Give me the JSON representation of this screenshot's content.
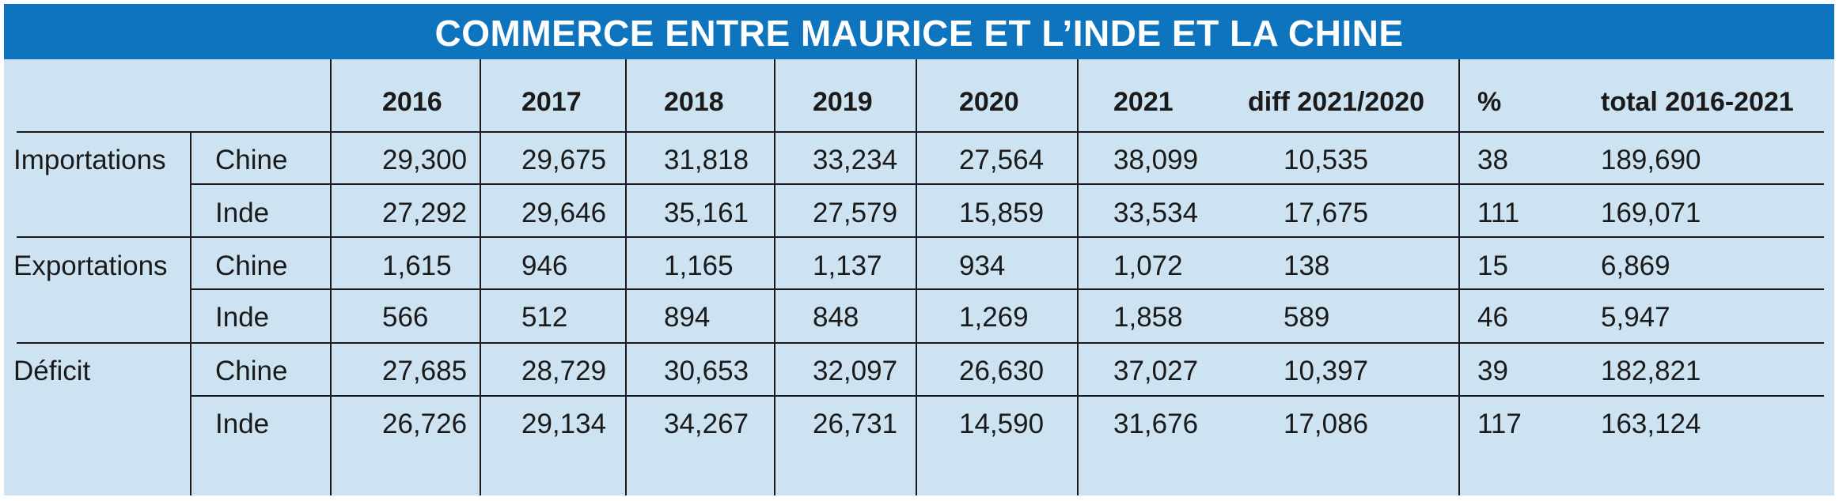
{
  "title": "COMMERCE ENTRE MAURICE ET L’INDE ET LA CHINE",
  "headers": [
    "2016",
    "2017",
    "2018",
    "2019",
    "2020",
    "2021",
    "diff 2021/2020",
    "%",
    "total 2016-2021"
  ],
  "rows": [
    {
      "group": "Importations",
      "country": "Chine",
      "values": [
        "29,300",
        "29,675",
        "31,818",
        "33,234",
        "27,564",
        "38,099",
        "10,535",
        "38",
        "189,690"
      ]
    },
    {
      "group": "",
      "country": "Inde",
      "values": [
        "27,292",
        "29,646",
        "35,161",
        "27,579",
        "15,859",
        "33,534",
        "17,675",
        "111",
        "169,071"
      ]
    },
    {
      "group": "Exportations",
      "country": "Chine",
      "values": [
        "1,615",
        "946",
        "1,165",
        "1,137",
        "934",
        "1,072",
        "138",
        "15",
        "6,869"
      ]
    },
    {
      "group": "",
      "country": "Inde",
      "values": [
        "566",
        "512",
        "894",
        "848",
        "1,269",
        "1,858",
        "589",
        "46",
        "5,947"
      ]
    },
    {
      "group": "Déficit",
      "country": "Chine",
      "values": [
        "27,685",
        "28,729",
        "30,653",
        "32,097",
        "26,630",
        "37,027",
        "10,397",
        "39",
        "182,821"
      ]
    },
    {
      "group": "",
      "country": "Inde",
      "values": [
        "26,726",
        "29,134",
        "34,267",
        "26,731",
        "14,590",
        "31,676",
        "17,086",
        "117",
        "163,124"
      ]
    }
  ],
  "chart_data": {
    "type": "table",
    "title": "COMMERCE ENTRE MAURICE ET L’INDE ET LA CHINE",
    "columns": [
      "2016",
      "2017",
      "2018",
      "2019",
      "2020",
      "2021",
      "diff 2021/2020",
      "%",
      "total 2016-2021"
    ],
    "series": [
      {
        "name": "Importations Chine",
        "values": [
          29300,
          29675,
          31818,
          33234,
          27564,
          38099,
          10535,
          38,
          189690
        ]
      },
      {
        "name": "Importations Inde",
        "values": [
          27292,
          29646,
          35161,
          27579,
          15859,
          33534,
          17675,
          111,
          169071
        ]
      },
      {
        "name": "Exportations Chine",
        "values": [
          1615,
          946,
          1165,
          1137,
          934,
          1072,
          138,
          15,
          6869
        ]
      },
      {
        "name": "Exportations Inde",
        "values": [
          566,
          512,
          894,
          848,
          1269,
          1858,
          589,
          46,
          5947
        ]
      },
      {
        "name": "Déficit Chine",
        "values": [
          27685,
          28729,
          30653,
          32097,
          26630,
          37027,
          10397,
          39,
          182821
        ]
      },
      {
        "name": "Déficit Inde",
        "values": [
          26726,
          29134,
          34267,
          26731,
          14590,
          31676,
          17086,
          117,
          163124
        ]
      }
    ]
  }
}
